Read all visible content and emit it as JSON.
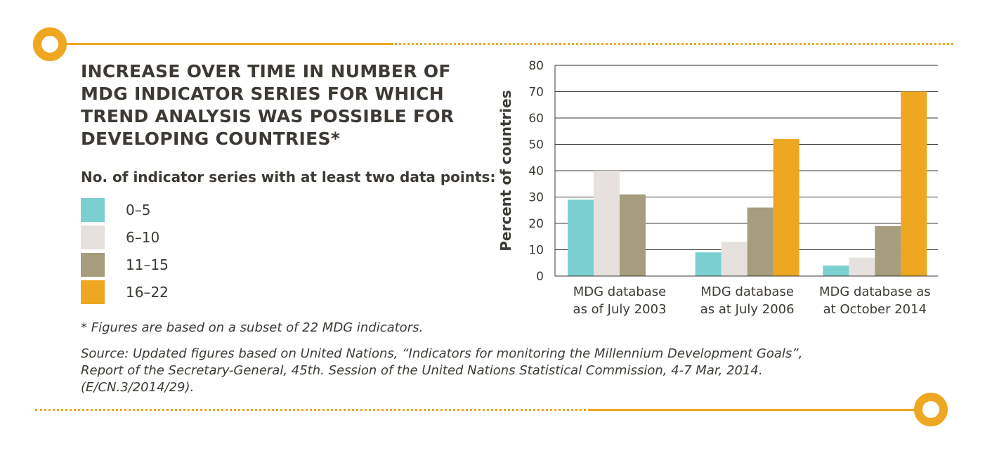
{
  "title": "INCREASE OVER TIME IN NUMBER OF MDG INDICATOR SERIES FOR WHICH TREND ANALYSIS WAS POSSIBLE FOR DEVELOPING COUNTRIES*",
  "legend": {
    "heading": "No. of indicator series with at least two data points:",
    "items": [
      {
        "label": "0–5",
        "color": "#7bcfd1"
      },
      {
        "label": "6–10",
        "color": "#e6e1df"
      },
      {
        "label": "11–15",
        "color": "#a69c7e"
      },
      {
        "label": "16–22",
        "color": "#eea720"
      }
    ]
  },
  "footnote": "* Figures are based on a subset of 22 MDG indicators.",
  "source": {
    "line1": "Source: Updated figures based on United Nations, “Indicators for monitoring the Millennium Development Goals”,",
    "line2": "Report of the Secretary-General, 45th. Session of the United Nations Statistical Commission, 4-7 Mar, 2014.",
    "line3": "(E/CN.3/2014/29)."
  },
  "colors": {
    "accent": "#eea720",
    "text": "#3d3a35"
  },
  "chart_data": {
    "type": "bar",
    "categories": [
      [
        "MDG database",
        "as of July 2003"
      ],
      [
        "MDG database",
        "as at July 2006"
      ],
      [
        "MDG database as",
        "at October 2014"
      ]
    ],
    "series": [
      {
        "name": "0–5",
        "color": "#7bcfd1",
        "values": [
          29,
          9,
          4
        ]
      },
      {
        "name": "6–10",
        "color": "#e6e1df",
        "values": [
          40,
          13,
          7
        ]
      },
      {
        "name": "11–15",
        "color": "#a69c7e",
        "values": [
          31,
          26,
          19
        ]
      },
      {
        "name": "16–22",
        "color": "#eea720",
        "values": [
          0,
          52,
          70
        ]
      }
    ],
    "ylabel": "Percent of countries",
    "xlabel": "",
    "ylim": [
      0,
      80
    ],
    "yticks": [
      0,
      10,
      20,
      30,
      40,
      50,
      60,
      70,
      80
    ],
    "grid": true,
    "legend_placement": "left"
  }
}
